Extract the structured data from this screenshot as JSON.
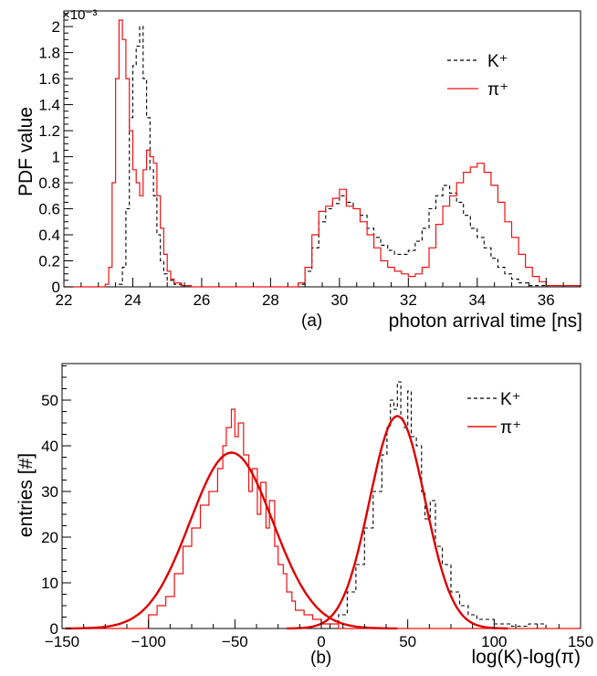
{
  "chart_data": [
    {
      "type": "line",
      "panel_label": "(a)",
      "xlabel": "photon arrival time [ns]",
      "ylabel": "PDF value",
      "y_exponent": "×10⁻³",
      "xlim": [
        22,
        37
      ],
      "ylim": [
        0,
        2.12
      ],
      "xticks": [
        22,
        24,
        26,
        28,
        30,
        32,
        34,
        36
      ],
      "yticks": [
        0,
        0.2,
        0.4,
        0.6,
        0.8,
        1,
        1.2,
        1.4,
        1.6,
        1.8,
        2
      ],
      "legend_position": "top-right",
      "grid": false,
      "series": [
        {
          "name": "K⁺",
          "style": "dashed",
          "color": "#000000",
          "x": [
            22.0,
            23.0,
            23.5,
            23.6,
            23.7,
            23.8,
            23.9,
            24.0,
            24.1,
            24.2,
            24.3,
            24.4,
            24.5,
            24.6,
            24.7,
            24.8,
            24.9,
            25.0,
            25.2,
            25.5,
            26.0,
            28.0,
            28.8,
            29.0,
            29.2,
            29.4,
            29.6,
            29.8,
            30.0,
            30.2,
            30.4,
            30.6,
            30.8,
            31.0,
            31.2,
            31.4,
            31.6,
            31.8,
            32.0,
            32.2,
            32.4,
            32.6,
            32.8,
            33.0,
            33.2,
            33.4,
            33.6,
            33.8,
            34.0,
            34.2,
            34.4,
            34.6,
            34.8,
            35.0,
            35.2,
            35.5,
            36.0,
            37.0
          ],
          "y": [
            0.0,
            0.0,
            0.0,
            0.02,
            0.15,
            0.6,
            1.3,
            1.7,
            1.85,
            2.0,
            1.6,
            1.3,
            0.9,
            0.7,
            0.4,
            0.2,
            0.1,
            0.05,
            0.02,
            0.0,
            0.0,
            0.0,
            0.02,
            0.12,
            0.3,
            0.5,
            0.6,
            0.64,
            0.7,
            0.65,
            0.6,
            0.55,
            0.45,
            0.38,
            0.32,
            0.28,
            0.25,
            0.25,
            0.28,
            0.35,
            0.45,
            0.6,
            0.7,
            0.78,
            0.72,
            0.65,
            0.55,
            0.45,
            0.38,
            0.3,
            0.22,
            0.15,
            0.1,
            0.06,
            0.03,
            0.01,
            0.0,
            0.0
          ]
        },
        {
          "name": "π⁺",
          "style": "solid",
          "color": "#ee1111",
          "x": [
            22.0,
            23.0,
            23.2,
            23.3,
            23.4,
            23.5,
            23.6,
            23.7,
            23.8,
            23.9,
            24.0,
            24.1,
            24.2,
            24.3,
            24.4,
            24.5,
            24.6,
            24.7,
            24.8,
            24.9,
            25.0,
            25.1,
            25.2,
            25.4,
            25.7,
            26.0,
            28.0,
            28.8,
            29.0,
            29.2,
            29.4,
            29.6,
            29.8,
            30.0,
            30.2,
            30.4,
            30.6,
            30.8,
            31.0,
            31.2,
            31.4,
            31.6,
            31.8,
            32.0,
            32.2,
            32.4,
            32.6,
            32.8,
            33.0,
            33.2,
            33.4,
            33.6,
            33.8,
            34.0,
            34.2,
            34.4,
            34.6,
            34.8,
            35.0,
            35.2,
            35.4,
            35.6,
            35.8,
            36.0,
            37.0
          ],
          "y": [
            0.0,
            0.0,
            0.02,
            0.15,
            0.8,
            1.6,
            2.05,
            1.9,
            1.6,
            1.2,
            0.9,
            0.8,
            0.7,
            0.9,
            1.05,
            1.0,
            0.95,
            0.7,
            0.45,
            0.25,
            0.12,
            0.06,
            0.03,
            0.01,
            0.0,
            0.0,
            0.0,
            0.03,
            0.15,
            0.4,
            0.58,
            0.62,
            0.68,
            0.75,
            0.62,
            0.6,
            0.5,
            0.4,
            0.3,
            0.2,
            0.15,
            0.12,
            0.1,
            0.08,
            0.1,
            0.15,
            0.3,
            0.48,
            0.62,
            0.7,
            0.8,
            0.88,
            0.92,
            0.95,
            0.88,
            0.78,
            0.65,
            0.5,
            0.38,
            0.25,
            0.15,
            0.08,
            0.04,
            0.01,
            0.0
          ]
        }
      ]
    },
    {
      "type": "line",
      "panel_label": "(b)",
      "xlabel": "log(K)-log(π)",
      "ylabel": "entries [#]",
      "xlim": [
        -150,
        150
      ],
      "ylim": [
        0,
        58
      ],
      "xticks": [
        -150,
        -100,
        -50,
        0,
        50,
        100,
        150
      ],
      "yticks": [
        0,
        10,
        20,
        30,
        40,
        50
      ],
      "legend_position": "top-right",
      "grid": false,
      "series": [
        {
          "name": "K⁺",
          "style": "dashed",
          "color": "#000000",
          "x": [
            -150,
            0,
            5,
            10,
            15,
            20,
            25,
            30,
            35,
            38,
            40,
            42,
            44,
            46,
            48,
            50,
            52,
            55,
            58,
            60,
            63,
            66,
            70,
            75,
            80,
            85,
            90,
            100,
            110,
            120,
            130,
            150
          ],
          "y": [
            0,
            0,
            1,
            3,
            8,
            14,
            22,
            30,
            38,
            44,
            50,
            48,
            54,
            46,
            44,
            52,
            42,
            40,
            30,
            24,
            28,
            18,
            14,
            8,
            5,
            3,
            2,
            1,
            0.5,
            1,
            0,
            0
          ]
        },
        {
          "name": "π⁺",
          "style": "solid",
          "color": "#ee1111",
          "x": [
            -150,
            -110,
            -100,
            -95,
            -90,
            -85,
            -80,
            -75,
            -70,
            -65,
            -60,
            -57,
            -55,
            -52,
            -50,
            -48,
            -45,
            -42,
            -40,
            -37,
            -35,
            -32,
            -30,
            -27,
            -25,
            -22,
            -20,
            -17,
            -15,
            -10,
            -5,
            0,
            10,
            20,
            150
          ],
          "y": [
            0,
            0,
            3,
            5,
            7,
            12,
            18,
            22,
            27,
            30,
            35,
            40,
            44,
            48,
            42,
            45,
            38,
            30,
            35,
            25,
            32,
            22,
            28,
            18,
            14,
            12,
            8,
            6,
            4,
            3,
            2,
            1,
            0,
            0,
            0
          ]
        }
      ],
      "fits": [
        {
          "series": "π⁺",
          "mean": -52,
          "sigma": 24,
          "amplitude": 38.5,
          "color": "#dd0000"
        },
        {
          "series": "K⁺",
          "mean": 44,
          "sigma": 16,
          "amplitude": 46.5,
          "color": "#dd0000"
        }
      ]
    }
  ]
}
